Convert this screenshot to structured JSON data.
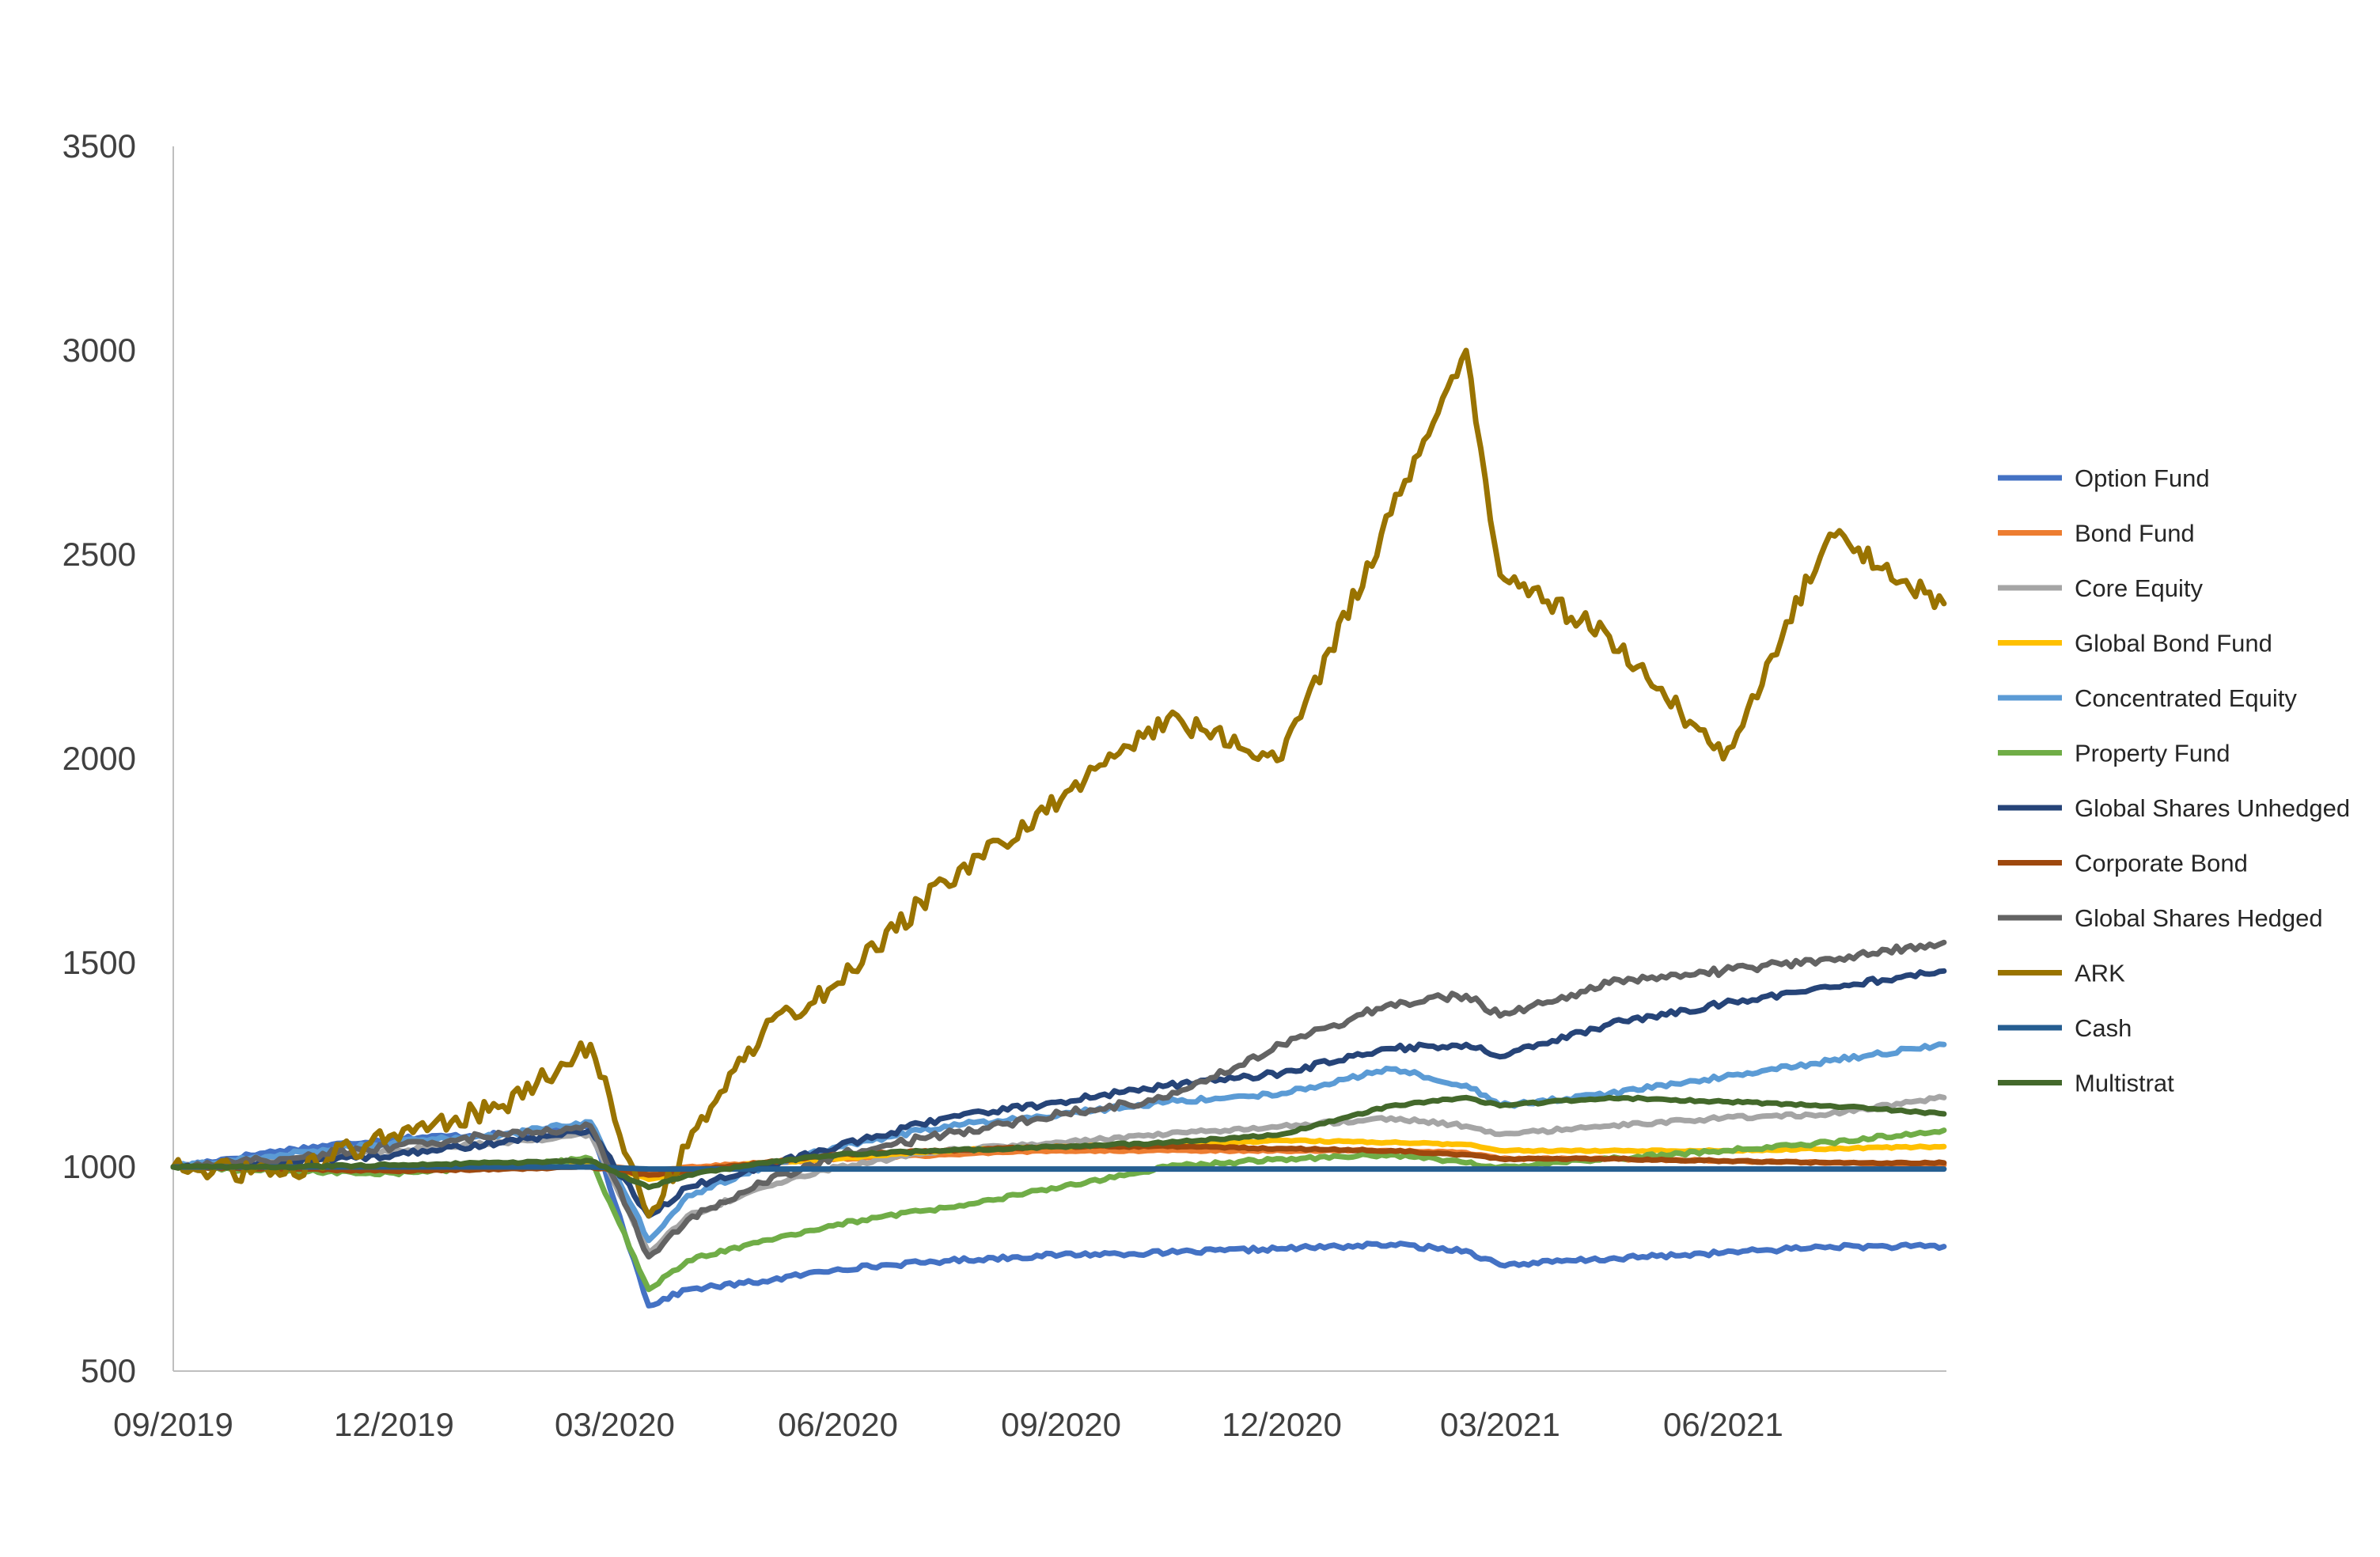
{
  "chart_data": {
    "type": "line",
    "title": "",
    "xlabel": "",
    "ylabel": "",
    "ylim": [
      500,
      3500
    ],
    "yticks": [
      500,
      1000,
      1500,
      2000,
      2500,
      3000,
      3500
    ],
    "xlim": [
      "2019-09-01",
      "2021-09-01"
    ],
    "x_tick_labels": [
      "09/2019",
      "12/2019",
      "03/2020",
      "06/2020",
      "09/2020",
      "12/2020",
      "03/2021",
      "06/2021"
    ],
    "grid": false,
    "legend_position": "right",
    "x": [
      "2019-09-01",
      "2019-10-15",
      "2019-12-01",
      "2020-01-15",
      "2020-02-20",
      "2020-03-15",
      "2020-03-31",
      "2020-05-01",
      "2020-06-01",
      "2020-07-15",
      "2020-09-01",
      "2020-10-15",
      "2020-12-01",
      "2021-01-15",
      "2021-02-15",
      "2021-03-01",
      "2021-04-15",
      "2021-06-01",
      "2021-07-15",
      "2021-08-31"
    ],
    "series": [
      {
        "name": "Option Fund",
        "color": "#4472C4",
        "values": [
          1000,
          1040,
          1070,
          1080,
          1100,
          660,
          700,
          720,
          750,
          770,
          785,
          790,
          800,
          810,
          795,
          760,
          775,
          790,
          805,
          805
        ]
      },
      {
        "name": "Bond Fund",
        "color": "#ED7D31",
        "values": [
          1000,
          1000,
          995,
          1000,
          1005,
          990,
          1000,
          1010,
          1020,
          1030,
          1040,
          1040,
          1040,
          1040,
          1035,
          1020,
          1020,
          1015,
          1010,
          1005
        ]
      },
      {
        "name": "Core Equity",
        "color": "#A5A5A5",
        "values": [
          1000,
          1020,
          1040,
          1060,
          1080,
          790,
          880,
          950,
          1000,
          1040,
          1060,
          1080,
          1100,
          1120,
          1100,
          1080,
          1100,
          1120,
          1130,
          1170
        ]
      },
      {
        "name": "Global Bond Fund",
        "color": "#FFC000",
        "values": [
          1000,
          1000,
          995,
          1000,
          1010,
          970,
          990,
          1010,
          1020,
          1040,
          1050,
          1055,
          1065,
          1060,
          1055,
          1040,
          1040,
          1040,
          1045,
          1050
        ]
      },
      {
        "name": "Concentrated Equity",
        "color": "#5B9BD5",
        "values": [
          1000,
          1030,
          1060,
          1080,
          1110,
          820,
          930,
          1000,
          1050,
          1100,
          1130,
          1160,
          1180,
          1240,
          1200,
          1150,
          1180,
          1220,
          1260,
          1300
        ]
      },
      {
        "name": "Property Fund",
        "color": "#70AD47",
        "values": [
          1000,
          990,
          985,
          1000,
          1020,
          700,
          770,
          820,
          860,
          900,
          950,
          1000,
          1020,
          1030,
          1010,
          1000,
          1020,
          1040,
          1060,
          1090
        ]
      },
      {
        "name": "Global Shares Unhedged",
        "color": "#264478",
        "values": [
          1000,
          1010,
          1030,
          1060,
          1090,
          880,
          950,
          1000,
          1050,
          1120,
          1160,
          1200,
          1230,
          1290,
          1300,
          1270,
          1350,
          1400,
          1440,
          1480
        ]
      },
      {
        "name": "Corporate Bond",
        "color": "#9E480E",
        "values": [
          1000,
          995,
          990,
          995,
          1000,
          980,
          990,
          1010,
          1030,
          1040,
          1050,
          1050,
          1045,
          1040,
          1030,
          1020,
          1020,
          1015,
          1010,
          1010
        ]
      },
      {
        "name": "Global Shares Hedged",
        "color": "#636363",
        "values": [
          1000,
          1020,
          1050,
          1080,
          1100,
          780,
          870,
          960,
          1030,
          1080,
          1130,
          1170,
          1300,
          1400,
          1420,
          1370,
          1450,
          1480,
          1510,
          1550
        ]
      },
      {
        "name": "ARK",
        "color": "#997300",
        "values": [
          1000,
          980,
          1080,
          1150,
          1300,
          880,
          1050,
          1330,
          1450,
          1700,
          1900,
          2100,
          2000,
          2600,
          3000,
          2450,
          2300,
          2000,
          2550,
          2380
        ]
      },
      {
        "name": "Cash",
        "color": "#255E91",
        "values": [
          1000,
          1000,
          1000,
          1000,
          1000,
          995,
          995,
          995,
          995,
          995,
          995,
          995,
          995,
          995,
          995,
          995,
          995,
          995,
          995,
          995
        ]
      },
      {
        "name": "Multistrat",
        "color": "#43682B",
        "values": [
          1000,
          1000,
          1005,
          1010,
          1015,
          950,
          980,
          1010,
          1030,
          1040,
          1050,
          1060,
          1080,
          1150,
          1170,
          1150,
          1170,
          1160,
          1150,
          1130
        ]
      }
    ]
  }
}
